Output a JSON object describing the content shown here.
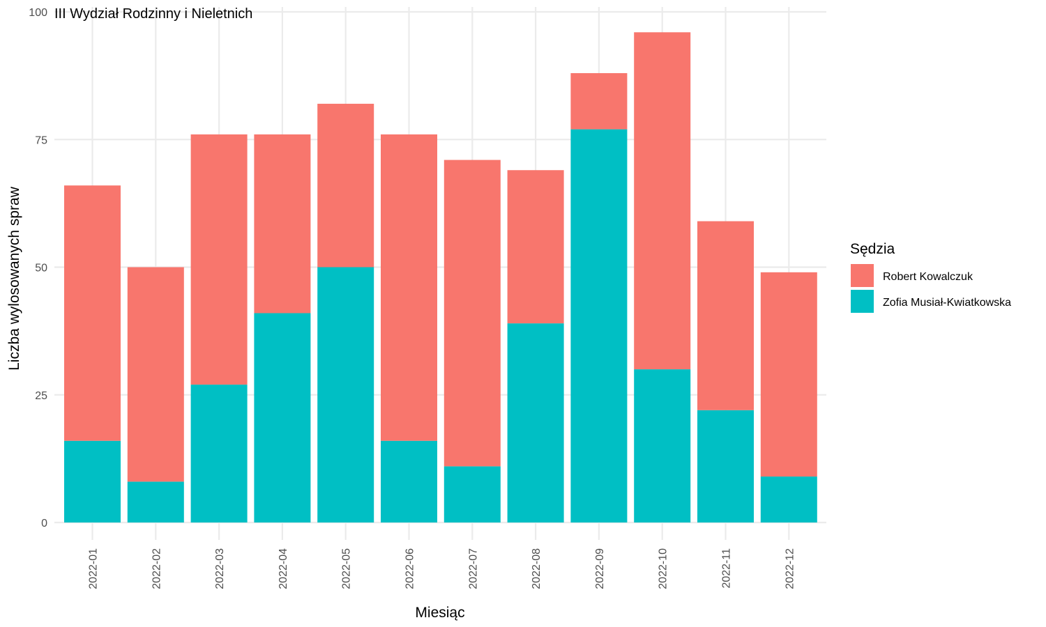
{
  "chart_data": {
    "type": "bar",
    "stacked": true,
    "title": "III Wydział Rodzinny i Nieletnich",
    "xlabel": "Miesiąc",
    "ylabel": "Liczba wylosowanych spraw",
    "ylim": [
      0,
      100
    ],
    "yticks": [
      "0",
      "25",
      "50",
      "75",
      "100"
    ],
    "grid": true,
    "legend": {
      "title": "Sędzia",
      "placement": "right"
    },
    "categories": [
      "2022-01",
      "2022-02",
      "2022-03",
      "2022-04",
      "2022-05",
      "2022-06",
      "2022-07",
      "2022-08",
      "2022-09",
      "2022-10",
      "2022-11",
      "2022-12"
    ],
    "series": [
      {
        "name": "Zofia Musiał-Kwiatkowska",
        "color": "#00BFC4",
        "values": [
          16,
          8,
          27,
          41,
          50,
          16,
          11,
          39,
          77,
          30,
          22,
          9
        ]
      },
      {
        "name": "Robert Kowalczuk",
        "color": "#F8766D",
        "values": [
          50,
          42,
          49,
          35,
          32,
          60,
          60,
          30,
          11,
          66,
          37,
          40
        ]
      }
    ],
    "legend_order": [
      "Robert Kowalczuk",
      "Zofia Musiał-Kwiatkowska"
    ]
  }
}
